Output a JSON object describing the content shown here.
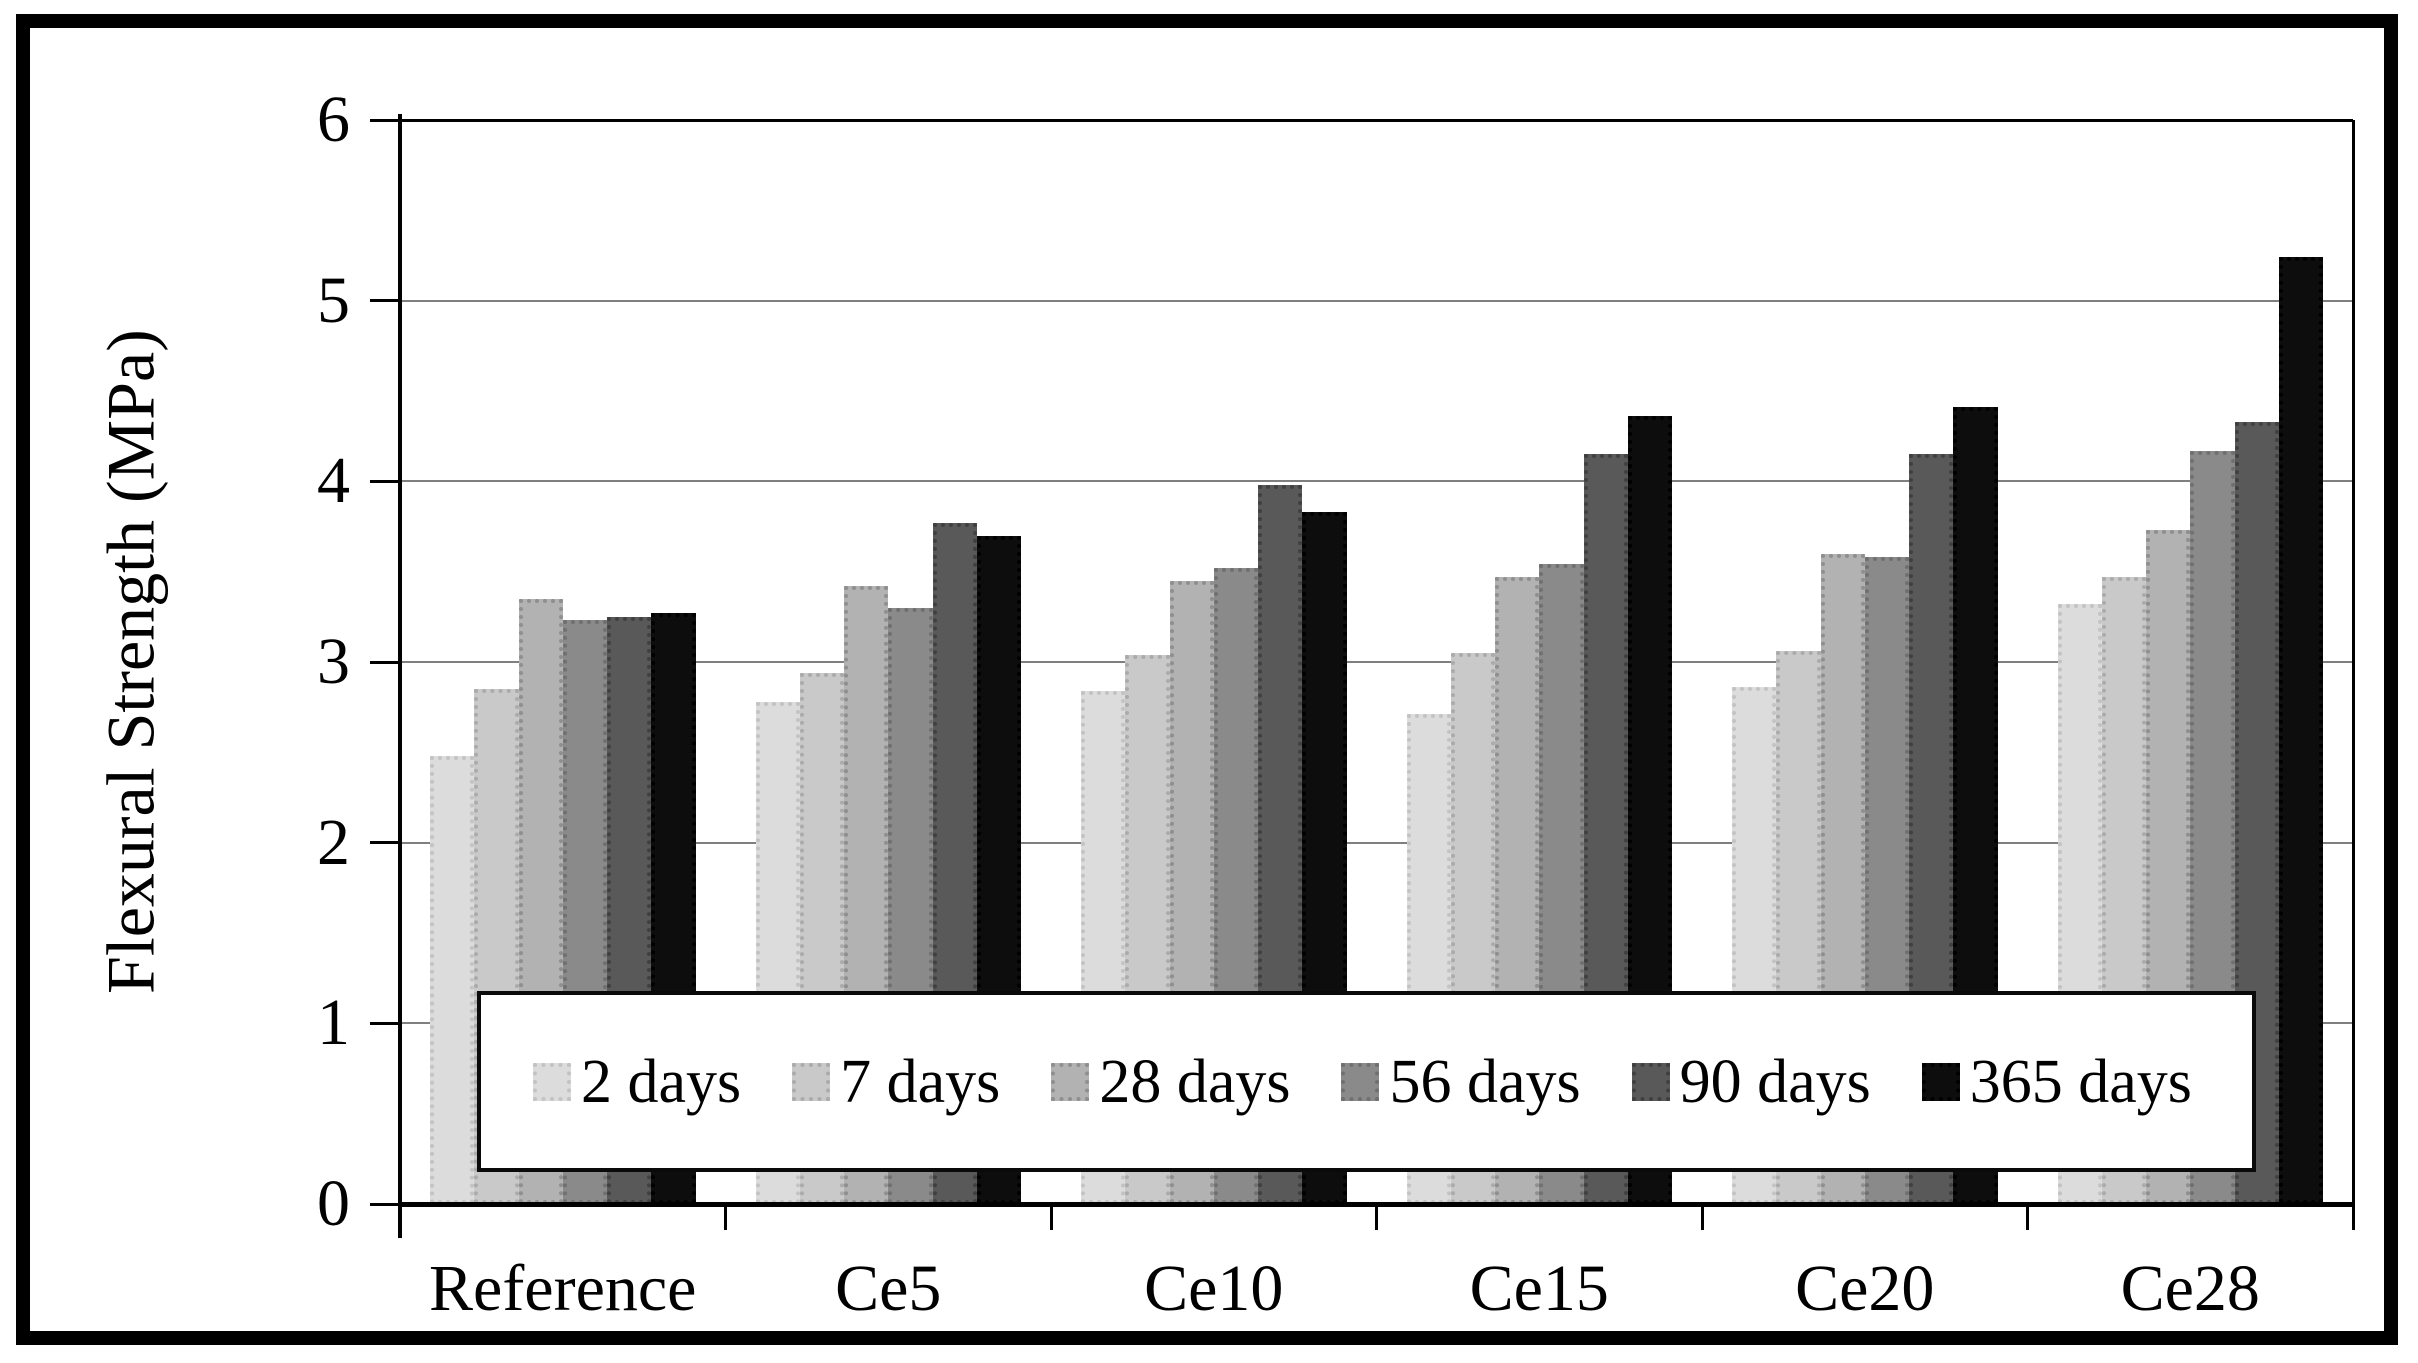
{
  "chart_data": {
    "type": "bar",
    "title": "",
    "xlabel": "",
    "ylabel": "Flexural Strength (MPa)",
    "ylim": [
      0,
      6
    ],
    "yticks": [
      "0",
      "1",
      "2",
      "3",
      "4",
      "5",
      "6"
    ],
    "grid": true,
    "legend_position": "inside-bottom",
    "categories": [
      "Reference",
      "Ce5",
      "Ce10",
      "Ce15",
      "Ce20",
      "Ce28"
    ],
    "series": [
      {
        "name": "2 days",
        "fill": "#dcdcdc",
        "dot": "#c3c3c3",
        "values": [
          2.48,
          2.78,
          2.84,
          2.71,
          2.86,
          3.32
        ]
      },
      {
        "name": "7 days",
        "fill": "#c9c9c9",
        "dot": "#ababab",
        "values": [
          2.85,
          2.94,
          3.04,
          3.05,
          3.06,
          3.47
        ]
      },
      {
        "name": "28 days",
        "fill": "#b2b2b2",
        "dot": "#8f8f8f",
        "values": [
          3.35,
          3.42,
          3.45,
          3.47,
          3.6,
          3.73
        ]
      },
      {
        "name": "56 days",
        "fill": "#8a8a8a",
        "dot": "#707070",
        "values": [
          3.23,
          3.3,
          3.52,
          3.54,
          3.58,
          4.17
        ]
      },
      {
        "name": "90 days",
        "fill": "#595959",
        "dot": "#404040",
        "values": [
          3.25,
          3.77,
          3.98,
          4.15,
          4.15,
          4.33
        ]
      },
      {
        "name": "365 days",
        "fill": "#0d0d0d",
        "dot": "#000000",
        "values": [
          3.27,
          3.7,
          3.83,
          4.36,
          4.41,
          5.24
        ]
      }
    ],
    "colors": {
      "gridline": "#7f7f7f",
      "axis": "#000000",
      "plot_background": "#ffffff",
      "legend_background": "#ffffff"
    }
  }
}
